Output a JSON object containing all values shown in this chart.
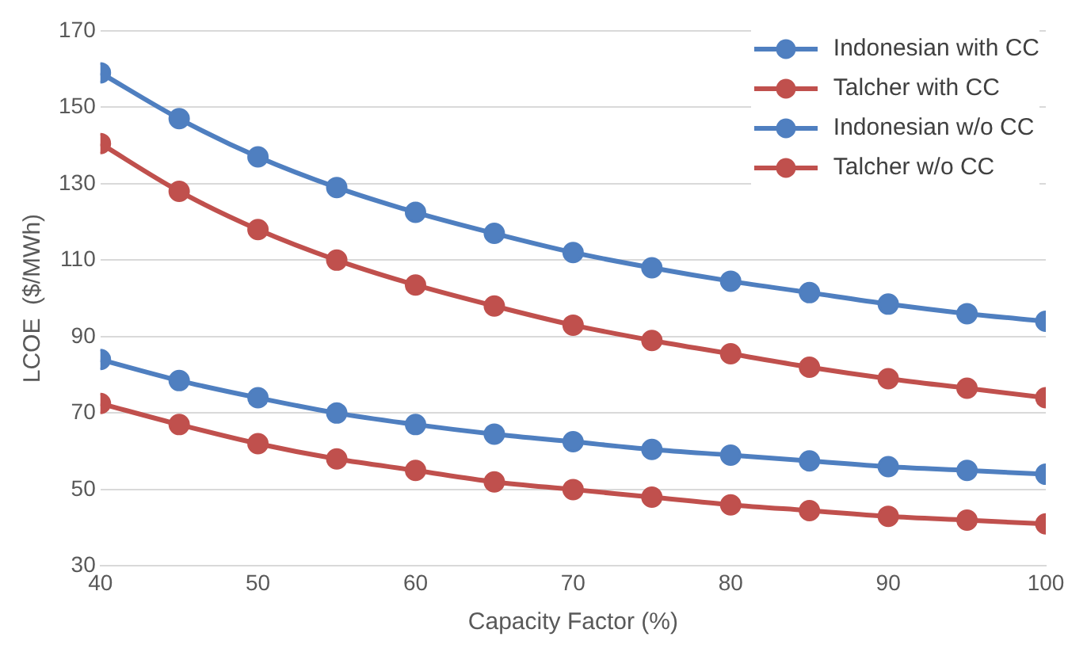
{
  "chart_data": {
    "type": "line",
    "xlabel": "Capacity Factor (%)",
    "ylabel": "LCOE  ($/MWh)",
    "x": [
      40,
      45,
      50,
      55,
      60,
      65,
      70,
      75,
      80,
      85,
      90,
      95,
      100
    ],
    "xlim": [
      40,
      100
    ],
    "xticks": [
      40,
      50,
      60,
      70,
      80,
      90,
      100
    ],
    "ylim": [
      30,
      170
    ],
    "yticks": [
      30,
      50,
      70,
      90,
      110,
      130,
      150,
      170
    ],
    "grid": "y",
    "legend": "top right",
    "marker": "circle",
    "series": [
      {
        "name": "Indonesian with CC",
        "color": "#4f7fc0",
        "values": [
          159,
          147,
          137,
          129,
          122.5,
          117,
          112,
          108,
          104.5,
          101.5,
          98.5,
          96,
          94
        ]
      },
      {
        "name": "Talcher with CC",
        "color": "#c0504d",
        "values": [
          140.5,
          128,
          118,
          110,
          103.5,
          98,
          93,
          89,
          85.5,
          82,
          79,
          76.5,
          74
        ]
      },
      {
        "name": "Indonesian w/o CC",
        "color": "#4f7fc0",
        "values": [
          84,
          78.5,
          74,
          70,
          67,
          64.5,
          62.5,
          60.5,
          59,
          57.5,
          56,
          55,
          54
        ]
      },
      {
        "name": "Talcher w/o CC",
        "color": "#c0504d",
        "values": [
          72.5,
          67,
          62,
          58,
          55,
          52,
          50,
          48,
          46,
          44.5,
          43,
          42,
          41
        ]
      }
    ]
  }
}
